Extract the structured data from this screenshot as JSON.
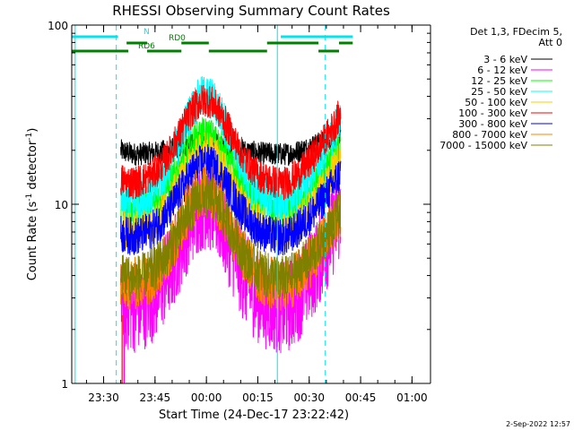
{
  "chart_data": {
    "type": "line",
    "title": "RHESSI Observing Summary Count Rates",
    "xlabel": "Start Time (24-Dec-17 23:22:42)",
    "ylabel_main": "Count Rate (s",
    "ylabel_exp1": "-1",
    "ylabel_mid": " detector",
    "ylabel_exp2": "-1",
    "ylabel_end": ")",
    "y_scale": "log",
    "ylim": [
      1,
      100
    ],
    "x_range_minutes": [
      -2,
      80
    ],
    "x_ticks": [
      {
        "label": "23:30",
        "min": 7.3
      },
      {
        "label": "23:45",
        "min": 22.3
      },
      {
        "label": "00:00",
        "min": 37.3
      },
      {
        "label": "00:15",
        "min": 52.3
      },
      {
        "label": "00:30",
        "min": 67.3
      },
      {
        "label": "00:45",
        "min": 82.3
      },
      {
        "label": "01:00",
        "min": 97.3
      }
    ],
    "y_ticks": [
      {
        "label": "1",
        "value": 1
      },
      {
        "label": "10",
        "value": 10
      },
      {
        "label": "100",
        "value": 100
      }
    ],
    "legend_header": [
      "Det 1,3, FDecim 5,",
      "Att 0"
    ],
    "legend_placement": "right",
    "series": [
      {
        "name": "3 - 6 keV",
        "color": "#000000",
        "peak": 22,
        "valley": 19,
        "end": 25,
        "noise": 0.15
      },
      {
        "name": "6 - 12 keV",
        "color": "#ff00ff",
        "peak": 10,
        "valley": 2.6,
        "end": 9,
        "noise": 0.6
      },
      {
        "name": "12 - 25 keV",
        "color": "#00ff00",
        "peak": 24,
        "valley": 9,
        "end": 20,
        "noise": 0.25
      },
      {
        "name": "25 - 50 keV",
        "color": "#00ffff",
        "peak": 40,
        "valley": 10,
        "end": 30,
        "noise": 0.28
      },
      {
        "name": "50 - 100 keV",
        "color": "#ffcc00",
        "peak": 20,
        "valley": 7,
        "end": 18,
        "noise": 0.25
      },
      {
        "name": "100 - 300 keV",
        "color": "#ff0000",
        "peak": 38,
        "valley": 13,
        "end": 32,
        "noise": 0.22
      },
      {
        "name": "300 - 800 keV",
        "color": "#0000ff",
        "peak": 17,
        "valley": 6.5,
        "end": 15,
        "noise": 0.25
      },
      {
        "name": "800 - 7000 keV",
        "color": "#ff8000",
        "peak": 12,
        "valley": 3.5,
        "end": 9,
        "noise": 0.35
      },
      {
        "name": "7000 - 15000 keV",
        "color": "#808000",
        "peak": 11,
        "valley": 3.8,
        "end": 9,
        "noise": 0.3
      }
    ],
    "markers": [
      {
        "label": "N",
        "color": "#00e5ee",
        "segments": [
          [
            -2,
            11.5
          ],
          [
            59,
            80
          ]
        ]
      },
      {
        "label": "RD0",
        "color": "#008000",
        "segments": [
          [
            14,
            20
          ],
          [
            30,
            38
          ],
          [
            55,
            70
          ],
          [
            76,
            80
          ]
        ]
      },
      {
        "label": "RD6",
        "color": "#008000",
        "segments": [
          [
            -2,
            14.5
          ],
          [
            20,
            30
          ],
          [
            38,
            55
          ],
          [
            70,
            76
          ]
        ]
      }
    ],
    "vlines_solid_min": [
      -1,
      58
    ],
    "vlines_dashed_min": [
      11,
      72
    ]
  },
  "footer": {
    "timestamp": "2-Sep-2022 12:57"
  }
}
